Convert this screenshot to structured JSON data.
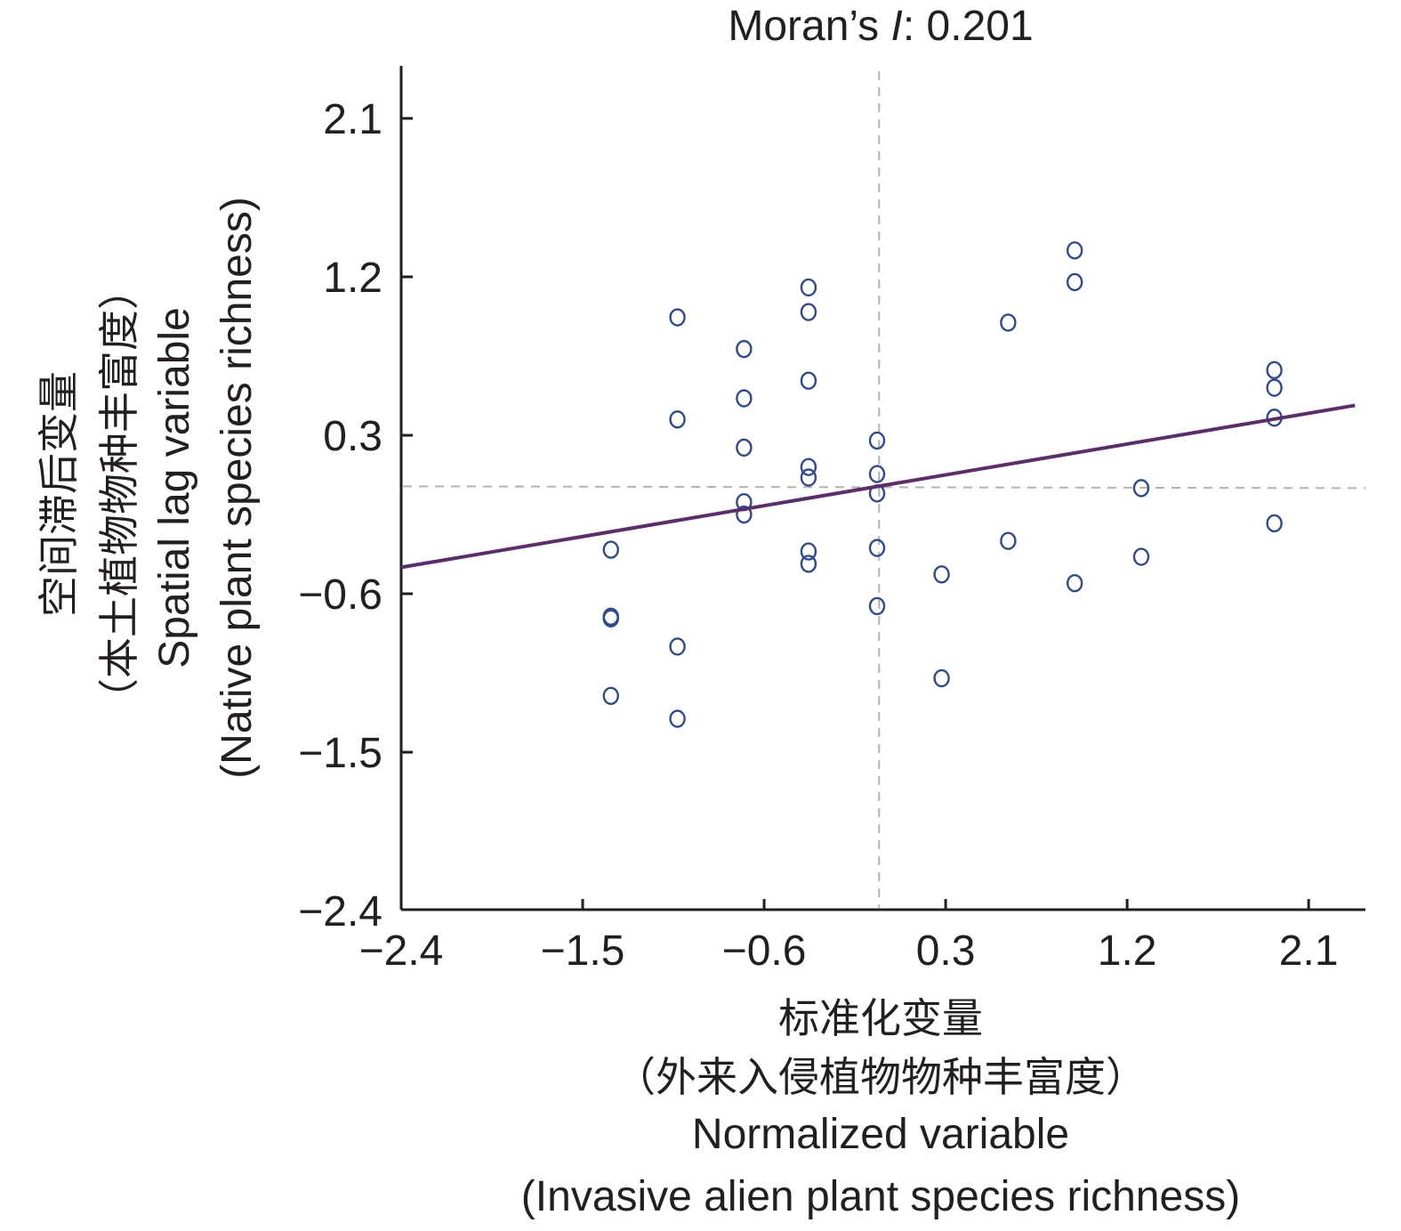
{
  "chart_data": {
    "type": "scatter",
    "title": "Moran's I: 0.201",
    "title_parts": {
      "prefix": "Moran’s ",
      "italic": "I",
      "suffix": ": 0.201"
    },
    "moran_i": 0.201,
    "xlabel": [
      "标准化变量",
      "（外来入侵植物物种丰富度）",
      "Normalized variable",
      "(Invasive alien plant species richness)"
    ],
    "ylabel": [
      "空间滞后变量",
      "（本土植物物种丰富度）",
      "Spatial lag variable",
      "(Native plant species richness)"
    ],
    "xlim": [
      -2.4,
      2.7
    ],
    "ylim": [
      -2.4,
      2.4
    ],
    "xticks": [
      -2.4,
      -1.5,
      -0.6,
      0.3,
      1.2,
      2.1
    ],
    "yticks": [
      -2.4,
      -1.5,
      -0.6,
      0.3,
      1.2,
      2.1
    ],
    "xtick_labels": [
      "−2.4",
      "−1.5",
      "−0.6",
      "0.3",
      "1.2",
      "2.1"
    ],
    "ytick_labels": [
      "−2.4",
      "−1.5",
      "−0.6",
      "0.3",
      "1.2",
      "2.1"
    ],
    "grid": false,
    "reference_lines": {
      "x_mean": -0.03,
      "y_mean": 0.01
    },
    "regression_line": {
      "x": [
        -2.4,
        2.33
      ],
      "y": [
        -0.45,
        0.47
      ],
      "slope": 0.195
    },
    "colors": {
      "points": "#2e4a94",
      "regression": "#5b2d6e",
      "reference": "#b3b3b3",
      "axis": "#231f20"
    },
    "series": [
      {
        "name": "observations",
        "points": [
          [
            -1.36,
            -0.35
          ],
          [
            -1.36,
            -0.73
          ],
          [
            -1.36,
            -0.74
          ],
          [
            -1.36,
            -1.18
          ],
          [
            -1.03,
            0.97
          ],
          [
            -1.03,
            0.39
          ],
          [
            -1.03,
            -0.9
          ],
          [
            -1.03,
            -1.31
          ],
          [
            -0.7,
            0.79
          ],
          [
            -0.7,
            0.51
          ],
          [
            -0.7,
            0.23
          ],
          [
            -0.7,
            -0.08
          ],
          [
            -0.7,
            -0.15
          ],
          [
            -0.38,
            1.14
          ],
          [
            -0.38,
            1.0
          ],
          [
            -0.38,
            0.61
          ],
          [
            -0.38,
            0.12
          ],
          [
            -0.38,
            0.06
          ],
          [
            -0.38,
            -0.36
          ],
          [
            -0.38,
            -0.43
          ],
          [
            -0.04,
            0.27
          ],
          [
            -0.04,
            0.08
          ],
          [
            -0.04,
            -0.03
          ],
          [
            -0.04,
            -0.34
          ],
          [
            -0.04,
            -0.67
          ],
          [
            0.28,
            -0.49
          ],
          [
            0.28,
            -1.08
          ],
          [
            0.61,
            0.94
          ],
          [
            0.61,
            -0.3
          ],
          [
            0.94,
            1.35
          ],
          [
            0.94,
            1.17
          ],
          [
            0.94,
            -0.54
          ],
          [
            1.27,
            0.0
          ],
          [
            1.27,
            -0.39
          ],
          [
            1.93,
            0.67
          ],
          [
            1.93,
            0.57
          ],
          [
            1.93,
            0.4
          ],
          [
            1.93,
            -0.2
          ]
        ]
      }
    ]
  }
}
